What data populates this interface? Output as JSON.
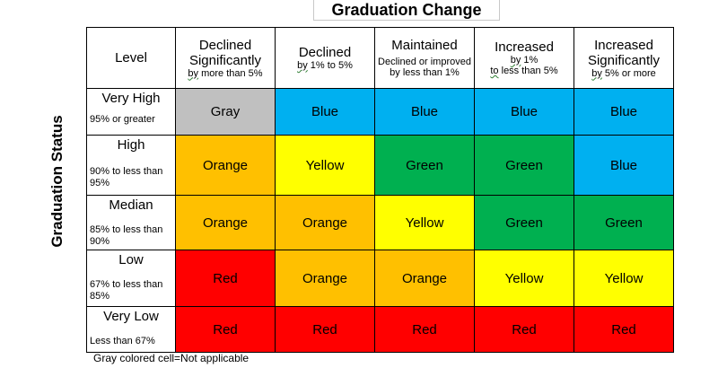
{
  "title": "Graduation Change",
  "side_label": "Graduation Status",
  "footnote": "Gray colored cell=Not applicable",
  "header": {
    "level": "Level",
    "columns": [
      {
        "main": "Declined Significantly",
        "sub_prefix": "by",
        "sub_rest": " more than 5%"
      },
      {
        "main": "Declined",
        "sub_prefix": "by",
        "sub_rest": " 1% to 5%"
      },
      {
        "main": "Maintained",
        "sub_prefix": "",
        "sub_rest": "Declined or improved by less than 1%"
      },
      {
        "main": "Increased",
        "sub_prefix": "by",
        "sub_rest": " 1%",
        "sub2_prefix": "to",
        "sub2_rest": " less than 5%"
      },
      {
        "main": "Increased Significantly",
        "sub_prefix": "by",
        "sub_rest": " 5% or more"
      }
    ]
  },
  "rows": [
    {
      "name": "Very High",
      "range": "95% or greater",
      "cells": [
        "Gray",
        "Blue",
        "Blue",
        "Blue",
        "Blue"
      ]
    },
    {
      "name": "High",
      "range": "90% to less than 95%",
      "cells": [
        "Orange",
        "Yellow",
        "Green",
        "Green",
        "Blue"
      ]
    },
    {
      "name": "Median",
      "range": "85% to less than 90%",
      "cells": [
        "Orange",
        "Orange",
        "Yellow",
        "Green",
        "Green"
      ]
    },
    {
      "name": "Low",
      "range": "67% to less than 85%",
      "cells": [
        "Red",
        "Orange",
        "Orange",
        "Yellow",
        "Yellow"
      ]
    },
    {
      "name": "Very Low",
      "range": "Less than 67%",
      "cells": [
        "Red",
        "Red",
        "Red",
        "Red",
        "Red"
      ]
    }
  ],
  "colors": {
    "Gray": "#c0c0c0",
    "Blue": "#00b0f0",
    "Orange": "#ffc000",
    "Yellow": "#ffff00",
    "Green": "#00b050",
    "Red": "#ff0000"
  },
  "chart_data": {
    "type": "table",
    "title": "Graduation Change",
    "ylabel": "Graduation Status",
    "columns": [
      "Level",
      "Declined Significantly",
      "Declined",
      "Maintained",
      "Increased",
      "Increased Significantly"
    ],
    "rows": [
      [
        "Very High",
        "Gray",
        "Blue",
        "Blue",
        "Blue",
        "Blue"
      ],
      [
        "High",
        "Orange",
        "Yellow",
        "Green",
        "Green",
        "Blue"
      ],
      [
        "Median",
        "Orange",
        "Orange",
        "Yellow",
        "Green",
        "Green"
      ],
      [
        "Low",
        "Red",
        "Orange",
        "Orange",
        "Yellow",
        "Yellow"
      ],
      [
        "Very Low",
        "Red",
        "Red",
        "Red",
        "Red",
        "Red"
      ]
    ]
  }
}
